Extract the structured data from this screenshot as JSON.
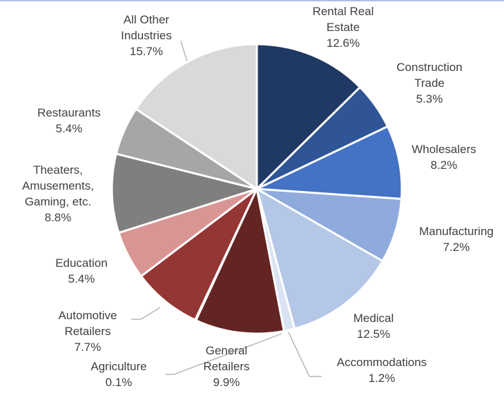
{
  "chart_data": {
    "type": "pie",
    "categories": [
      "Rental Real Estate",
      "Construction Trade",
      "Wholesalers",
      "Manufacturing",
      "Medical",
      "Accommodations",
      "General Retailers",
      "Agriculture",
      "Automotive Retailers",
      "Education",
      "Theaters, Amusements, Gaming, etc.",
      "Restaurants",
      "All Other Industries"
    ],
    "values": [
      12.6,
      5.3,
      8.2,
      7.2,
      12.5,
      1.2,
      9.9,
      0.1,
      7.7,
      5.4,
      8.8,
      5.4,
      15.7
    ],
    "value_labels": [
      "12.6%",
      "5.3%",
      "8.2%",
      "7.2%",
      "12.5%",
      "1.2%",
      "9.9%",
      "0.1%",
      "7.7%",
      "5.4%",
      "8.8%",
      "5.4%",
      "15.7%"
    ],
    "colors": [
      "#1f3864",
      "#2f5597",
      "#4472c4",
      "#8faadc",
      "#b4c7e7",
      "#dae3f3",
      "#632523",
      "#843c39",
      "#943634",
      "#d99594",
      "#7f7f7f",
      "#a6a6a6",
      "#d9d9d9"
    ]
  }
}
